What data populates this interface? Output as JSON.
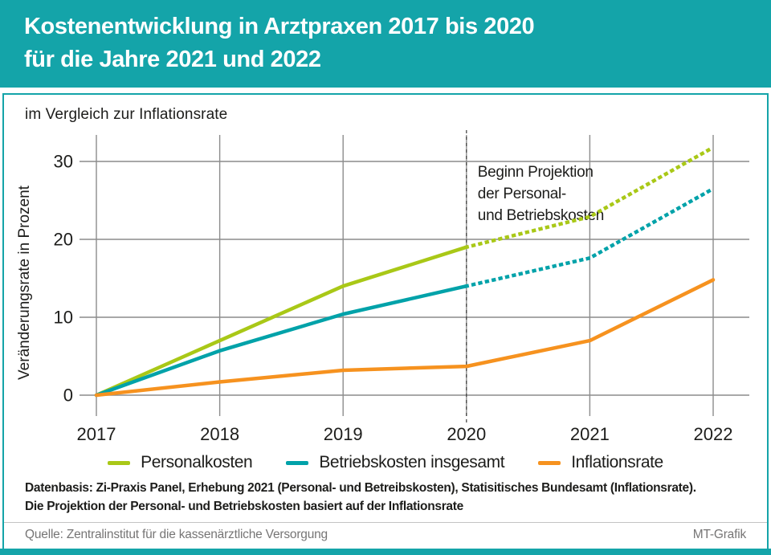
{
  "header": {
    "title_line1": "Kostenentwicklung in Arztpraxen 2017 bis 2020",
    "title_line2": "für die Jahre 2021 und 2022"
  },
  "subtitle": "im Vergleich zur Inflationsrate",
  "chart_data": {
    "type": "line",
    "title": "Kostenentwicklung in Arztpraxen 2017 bis 2020 für die Jahre 2021 und 2022",
    "subtitle": "im Vergleich zur Inflationsrate",
    "x": [
      2017,
      2018,
      2019,
      2020,
      2021,
      2022
    ],
    "xticklabels": [
      "2017",
      "2018",
      "2019",
      "2020",
      "2021",
      "2022"
    ],
    "series": [
      {
        "name": "Personalkosten",
        "color": "#A9C817",
        "values": [
          0,
          7.0,
          14.0,
          19.0,
          22.9,
          31.8
        ],
        "projection_from_index": 3
      },
      {
        "name": "Betriebskosten insgesamt",
        "color": "#00A2A9",
        "values": [
          0,
          5.7,
          10.4,
          14.0,
          17.6,
          26.5
        ],
        "projection_from_index": 3
      },
      {
        "name": "Inflationsrate",
        "color": "#F6921F",
        "values": [
          0,
          1.7,
          3.2,
          3.7,
          7.0,
          14.8
        ],
        "projection_from_index": null
      }
    ],
    "ylabel": "Veränderungsrate in Prozent",
    "yticks": [
      0,
      10,
      20,
      30
    ],
    "ylim": [
      -1,
      33.5
    ],
    "grid": true,
    "legend_position": "bottom",
    "annotation": {
      "x": 2020,
      "marker": "dashed-vertical-line",
      "lines": [
        "Beginn Projektion",
        "der Personal-",
        "und Betriebskosten"
      ]
    }
  },
  "footer": {
    "datenbasis_line1": "Datenbasis: Zi-Praxis Panel, Erhebung 2021 (Personal- und Betreibskosten), Statisitisches Bundesamt (Inflationsrate).",
    "datenbasis_line2": "Die Projektion der Personal- und Betriebskosten basiert auf der Inflationsrate",
    "quelle": "Quelle: Zentralinstitut für die kassenärztliche Versorgung",
    "credit": "MT-Grafik"
  },
  "colors": {
    "accent_teal": "#14A4A9",
    "line_green": "#A9C817",
    "line_teal": "#00A2A9",
    "line_orange": "#F6921F",
    "grid_gray": "#8C8C8C",
    "annotation_dark": "#3C3C3B",
    "footer_gray": "#767575"
  }
}
